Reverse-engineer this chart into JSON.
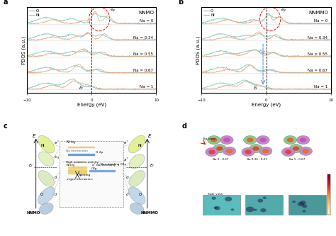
{
  "panel_a_title": "NNMO",
  "panel_b_title": "NNMMO",
  "xlabel": "Energy (eV)",
  "ylabel": "PDOS (a.u.)",
  "xlim": [
    -10,
    10
  ],
  "na_labels": [
    "Na = 0",
    "Na = 0.34",
    "Na = 0.55",
    "Na = 0.67",
    "Na = 1"
  ],
  "color_O": "#7ec8c8",
  "color_Ni": "#e8a87c",
  "bg_color": "#ffffff",
  "panel_labels": [
    "a",
    "b",
    "c",
    "d"
  ]
}
